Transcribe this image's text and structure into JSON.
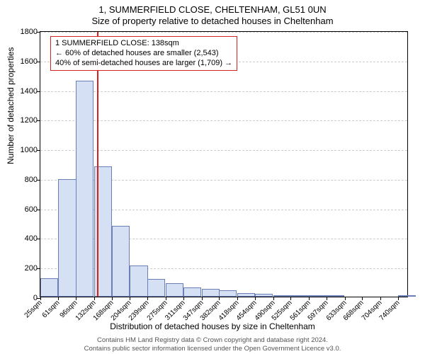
{
  "header": {
    "line1": "1, SUMMERFIELD CLOSE, CHELTENHAM, GL51 0UN",
    "line2": "Size of property relative to detached houses in Cheltenham"
  },
  "chart": {
    "type": "histogram",
    "background_color": "#ffffff",
    "border_color": "#000000",
    "grid_color": "#cccccc",
    "bar_fill": "#d6e0f5",
    "bar_stroke": "#6a7fb5",
    "ref_line_color": "#d62020",
    "ref_line_x": 138,
    "y_label": "Number of detached properties",
    "x_label": "Distribution of detached houses by size in Cheltenham",
    "y_ticks": [
      0,
      200,
      400,
      600,
      800,
      1000,
      1200,
      1400,
      1600,
      1800
    ],
    "ylim": [
      0,
      1800
    ],
    "x_ticks": [
      25,
      61,
      96,
      132,
      168,
      204,
      239,
      275,
      311,
      347,
      382,
      418,
      454,
      490,
      525,
      561,
      597,
      633,
      668,
      704,
      740
    ],
    "x_tick_suffix": "sqm",
    "xlim": [
      25,
      761
    ],
    "bin_width": 35.75,
    "bars": [
      {
        "x0": 25,
        "value": 125
      },
      {
        "x0": 61,
        "value": 795
      },
      {
        "x0": 96,
        "value": 1460
      },
      {
        "x0": 132,
        "value": 880
      },
      {
        "x0": 168,
        "value": 480
      },
      {
        "x0": 204,
        "value": 210
      },
      {
        "x0": 239,
        "value": 120
      },
      {
        "x0": 275,
        "value": 90
      },
      {
        "x0": 311,
        "value": 60
      },
      {
        "x0": 347,
        "value": 55
      },
      {
        "x0": 382,
        "value": 45
      },
      {
        "x0": 418,
        "value": 25
      },
      {
        "x0": 454,
        "value": 20
      },
      {
        "x0": 490,
        "value": 10
      },
      {
        "x0": 525,
        "value": 6
      },
      {
        "x0": 561,
        "value": 4
      },
      {
        "x0": 597,
        "value": 4
      },
      {
        "x0": 633,
        "value": 0
      },
      {
        "x0": 668,
        "value": 0
      },
      {
        "x0": 704,
        "value": 0
      },
      {
        "x0": 740,
        "value": 1
      }
    ],
    "annotation": {
      "line1": "1 SUMMERFIELD CLOSE: 138sqm",
      "line2": "← 60% of detached houses are smaller (2,543)",
      "line3": "40% of semi-detached houses are larger (1,709) →",
      "box_border": "#d62020"
    },
    "label_fontsize": 12,
    "tick_fontsize": 11
  },
  "footer": {
    "line1": "Contains HM Land Registry data © Crown copyright and database right 2024.",
    "line2": "Contains public sector information licensed under the Open Government Licence v3.0."
  }
}
